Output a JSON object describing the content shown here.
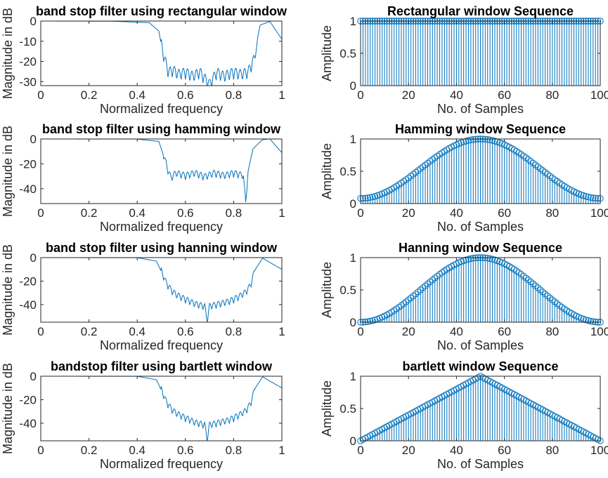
{
  "chart_data": [
    {
      "type": "line",
      "title": "band stop filter using rectangular window",
      "xlabel": "Normalized frequency",
      "ylabel": "Magnitude in dB",
      "xlim": [
        0,
        1
      ],
      "ylim": [
        -32,
        0
      ],
      "xticks": [
        0,
        0.2,
        0.4,
        0.6,
        0.8,
        1
      ],
      "yticks": [
        0,
        -10,
        -20,
        -30
      ],
      "series": [
        {
          "color": "#0072bd",
          "x": [
            0,
            0.3,
            0.45,
            0.49,
            0.5,
            0.51,
            0.53,
            0.55,
            0.57,
            0.6,
            0.63,
            0.66,
            0.7,
            0.73,
            0.76,
            0.8,
            0.83,
            0.86,
            0.89,
            0.9,
            0.91,
            0.95,
            1
          ],
          "y": [
            0,
            -0.1,
            -0.8,
            -5,
            -12,
            -18,
            -26,
            -25,
            -27,
            -26,
            -28,
            -26,
            -32,
            -26,
            -28,
            -26,
            -27,
            -26,
            -18,
            -8,
            -2,
            -0.2,
            -9
          ]
        }
      ]
    },
    {
      "type": "bar",
      "title": "Rectangular window Sequence",
      "xlabel": "No. of Samples",
      "ylabel": "Amplitude",
      "xlim": [
        0,
        100
      ],
      "ylim": [
        0,
        1
      ],
      "xticks": [
        0,
        20,
        40,
        60,
        80,
        100
      ],
      "yticks": [
        0,
        0.5,
        1
      ],
      "window": "rectangular",
      "n_points": 101,
      "series": [
        {
          "color": "#0072bd",
          "marker": "circle",
          "values": [
            1
          ]
        }
      ]
    },
    {
      "type": "line",
      "title": "band stop filter using hamming window",
      "xlabel": "Normalized frequency",
      "ylabel": "Magnitude in dB",
      "xlim": [
        0,
        1
      ],
      "ylim": [
        -52,
        0
      ],
      "xticks": [
        0,
        0.2,
        0.4,
        0.6,
        0.8,
        1
      ],
      "yticks": [
        0,
        -20,
        -40
      ],
      "series": [
        {
          "color": "#0072bd",
          "x": [
            0,
            0.4,
            0.49,
            0.51,
            0.53,
            0.54,
            0.56,
            0.6,
            0.64,
            0.68,
            0.72,
            0.76,
            0.8,
            0.84,
            0.85,
            0.86,
            0.88,
            0.92,
            0.95,
            1
          ],
          "y": [
            0,
            -0.1,
            -2,
            -14,
            -27,
            -32,
            -28,
            -30,
            -28,
            -31,
            -28,
            -30,
            -28,
            -30,
            -52,
            -26,
            -8,
            -0.5,
            0,
            -11
          ]
        }
      ]
    },
    {
      "type": "bar",
      "title": "Hamming window Sequence",
      "xlabel": "No. of Samples",
      "ylabel": "Amplitude",
      "xlim": [
        0,
        100
      ],
      "ylim": [
        0,
        1
      ],
      "xticks": [
        0,
        20,
        40,
        60,
        80,
        100
      ],
      "yticks": [
        0,
        0.5,
        1
      ],
      "window": "hamming",
      "n_points": 101,
      "series": [
        {
          "color": "#0072bd",
          "marker": "circle",
          "values": [
            0.08,
            0.54,
            1,
            0.54,
            0.08
          ]
        }
      ]
    },
    {
      "type": "line",
      "title": "band stop filter using hanning window",
      "xlabel": "Normalized frequency",
      "ylabel": "Magnitude in dB",
      "xlim": [
        0,
        1
      ],
      "ylim": [
        -55,
        0
      ],
      "xticks": [
        0,
        0.2,
        0.4,
        0.6,
        0.8,
        1
      ],
      "yticks": [
        0,
        -20,
        -40
      ],
      "series": [
        {
          "color": "#0072bd",
          "x": [
            0,
            0.4,
            0.48,
            0.5,
            0.52,
            0.54,
            0.56,
            0.6,
            0.64,
            0.68,
            0.69,
            0.7,
            0.74,
            0.78,
            0.82,
            0.85,
            0.87,
            0.89,
            0.92,
            1
          ],
          "y": [
            0,
            -0.1,
            -3,
            -12,
            -22,
            -28,
            -32,
            -36,
            -40,
            -42,
            -55,
            -42,
            -40,
            -38,
            -34,
            -30,
            -24,
            -10,
            -0.5,
            -10
          ]
        }
      ]
    },
    {
      "type": "bar",
      "title": "Hanning window Sequence",
      "xlabel": "No. of Samples",
      "ylabel": "Amplitude",
      "xlim": [
        0,
        100
      ],
      "ylim": [
        0,
        1
      ],
      "xticks": [
        0,
        20,
        40,
        60,
        80,
        100
      ],
      "yticks": [
        0,
        0.5,
        1
      ],
      "window": "hanning",
      "n_points": 101,
      "series": [
        {
          "color": "#0072bd",
          "marker": "circle",
          "values": [
            0,
            0.5,
            1,
            0.5,
            0
          ]
        }
      ]
    },
    {
      "type": "line",
      "title": "bandstop filter using bartlett window",
      "xlabel": "Normalized frequency",
      "ylabel": "Magnitude in dB",
      "xlim": [
        0,
        1
      ],
      "ylim": [
        -55,
        0
      ],
      "xticks": [
        0,
        0.2,
        0.4,
        0.6,
        0.8,
        1
      ],
      "yticks": [
        0,
        -20,
        -40
      ],
      "series": [
        {
          "color": "#0072bd",
          "x": [
            0,
            0.4,
            0.48,
            0.5,
            0.52,
            0.54,
            0.56,
            0.6,
            0.64,
            0.68,
            0.69,
            0.7,
            0.74,
            0.78,
            0.82,
            0.85,
            0.87,
            0.89,
            0.92,
            1
          ],
          "y": [
            0,
            -0.1,
            -3,
            -12,
            -22,
            -28,
            -32,
            -36,
            -40,
            -42,
            -55,
            -42,
            -40,
            -38,
            -34,
            -30,
            -24,
            -10,
            -0.5,
            -10
          ]
        }
      ]
    },
    {
      "type": "bar",
      "title": "bartlett window Sequence",
      "xlabel": "No. of Samples",
      "ylabel": "Amplitude",
      "xlim": [
        0,
        100
      ],
      "ylim": [
        0,
        1
      ],
      "xticks": [
        0,
        20,
        40,
        60,
        80,
        100
      ],
      "yticks": [
        0,
        0.5,
        1
      ],
      "window": "bartlett",
      "n_points": 101,
      "series": [
        {
          "color": "#0072bd",
          "marker": "circle",
          "values": [
            0,
            0.5,
            1,
            0.5,
            0
          ]
        }
      ]
    }
  ]
}
